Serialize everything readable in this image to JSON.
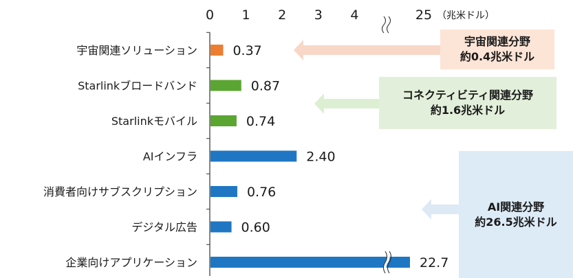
{
  "chart_data": {
    "type": "bar",
    "orientation": "horizontal",
    "unit_label": "（兆米ドル）",
    "x_ticks": [
      "0",
      "1",
      "2",
      "3",
      "4",
      "25"
    ],
    "axis_break": true,
    "categories": [
      "宇宙関連ソリューション",
      "Starlinkブロードバンド",
      "Starlinkモバイル",
      "AIインフラ",
      "消費者向けサブスクリプション",
      "デジタル広告",
      "企業向けアプリケーション"
    ],
    "values": [
      0.37,
      0.87,
      0.74,
      2.4,
      0.76,
      0.6,
      22.7
    ],
    "value_labels": [
      "0.37",
      "0.87",
      "0.74",
      "2.40",
      "0.76",
      "0.60",
      "22.7"
    ],
    "bar_colors": [
      "#ED7D31",
      "#5BA532",
      "#5BA532",
      "#1F77C4",
      "#1F77C4",
      "#1F77C4",
      "#1F77C4"
    ],
    "groups": [
      {
        "title": "宇宙関連分野",
        "total": "約0.4兆米ドル",
        "color": "#FCE4D6",
        "arrow_color": "#F8D7C7"
      },
      {
        "title": "コネクティビティ関連分野",
        "total": "約1.6兆米ドル",
        "color": "#E2EFDA",
        "arrow_color": "#DDEFD3"
      },
      {
        "title": "AI関連分野",
        "total": "約26.5兆米ドル",
        "color": "#DDEBF7",
        "arrow_color": "#DDE9F5"
      }
    ]
  }
}
